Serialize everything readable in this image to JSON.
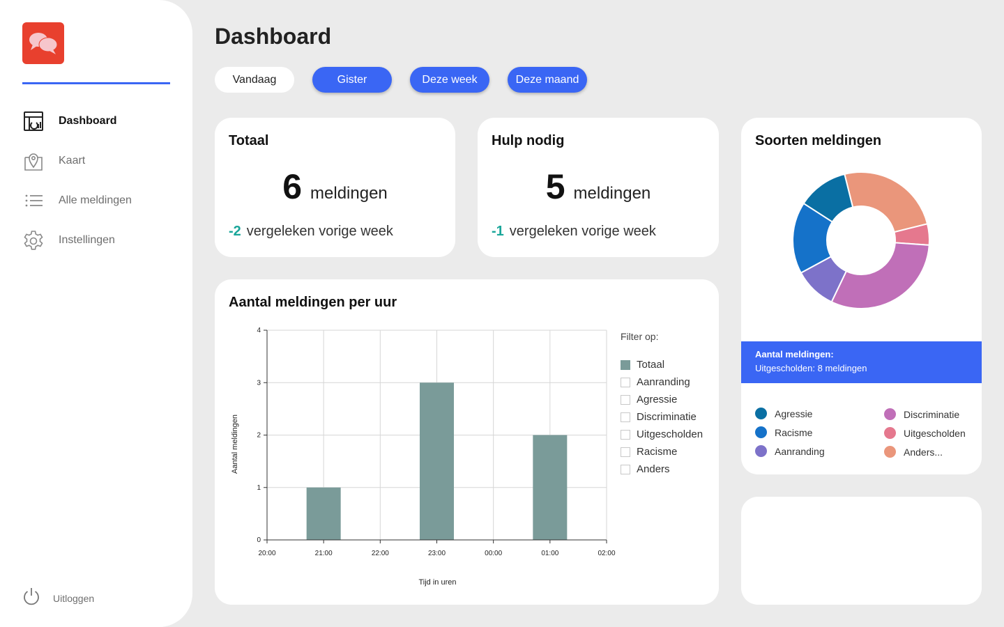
{
  "app": {
    "logo": "chat-bubbles-logo"
  },
  "sidebar": {
    "items": [
      {
        "label": "Dashboard",
        "icon": "dashboard-icon"
      },
      {
        "label": "Kaart",
        "icon": "map-pin-icon"
      },
      {
        "label": "Alle meldingen",
        "icon": "list-icon"
      },
      {
        "label": "Instellingen",
        "icon": "gear-icon"
      }
    ],
    "logout": "Uitloggen"
  },
  "header": {
    "title": "Dashboard",
    "filters": [
      "Vandaag",
      "Gister",
      "Deze week",
      "Deze maand"
    ]
  },
  "cards": {
    "totaal": {
      "title": "Totaal",
      "value": "6",
      "unit": "meldingen",
      "delta": "-2",
      "compare": "vergeleken vorige week"
    },
    "hulp": {
      "title": "Hulp nodig",
      "value": "5",
      "unit": "meldingen",
      "delta": "-1",
      "compare": "vergeleken vorige week"
    }
  },
  "hourly": {
    "title": "Aantal meldingen per uur",
    "filter_title": "Filter op:",
    "filters": [
      {
        "label": "Totaal",
        "checked": true
      },
      {
        "label": "Aanranding",
        "checked": false
      },
      {
        "label": "Agressie",
        "checked": false
      },
      {
        "label": "Discriminatie",
        "checked": false
      },
      {
        "label": "Uitgescholden",
        "checked": false
      },
      {
        "label": "Racisme",
        "checked": false
      },
      {
        "label": "Anders",
        "checked": false
      }
    ]
  },
  "types": {
    "title": "Soorten meldingen",
    "info_title": "Aantal meldingen:",
    "info_text": "Uitgescholden: 8 meldingen",
    "legend": [
      {
        "label": "Agressie",
        "color": "#0a6fa3"
      },
      {
        "label": "Discriminatie",
        "color": "#c06fb8"
      },
      {
        "label": "Racisme",
        "color": "#1572c9"
      },
      {
        "label": "Uitgescholden",
        "color": "#e5788e"
      },
      {
        "label": "Aanranding",
        "color": "#7d72c9"
      },
      {
        "label": "Anders...",
        "color": "#ea967b"
      }
    ]
  },
  "chart_data": [
    {
      "type": "bar",
      "title": "Aantal meldingen per uur",
      "xlabel": "Tijd in uren",
      "ylabel": "Aantal meldingen",
      "x_ticks": [
        "20:00",
        "21:00",
        "22:00",
        "23:00",
        "00:00",
        "01:00",
        "02:00"
      ],
      "bars": [
        {
          "x": "21:00",
          "value": 1
        },
        {
          "x": "23:00",
          "value": 3
        },
        {
          "x": "01:00",
          "value": 2
        }
      ],
      "ylim": [
        0,
        4
      ],
      "y_ticks": [
        0,
        1,
        2,
        3,
        4
      ],
      "grid": true,
      "color": "#7a9b99"
    },
    {
      "type": "pie",
      "title": "Soorten meldingen",
      "slices": [
        {
          "label": "Anders...",
          "value": 25,
          "color": "#ea967b"
        },
        {
          "label": "Uitgescholden",
          "value": 5,
          "color": "#e5788e"
        },
        {
          "label": "Discriminatie",
          "value": 31,
          "color": "#c06fb8"
        },
        {
          "label": "Aanranding",
          "value": 10,
          "color": "#7d72c9"
        },
        {
          "label": "Racisme",
          "value": 17,
          "color": "#1572c9"
        },
        {
          "label": "Agressie",
          "value": 12,
          "color": "#0a6fa3"
        }
      ]
    }
  ]
}
